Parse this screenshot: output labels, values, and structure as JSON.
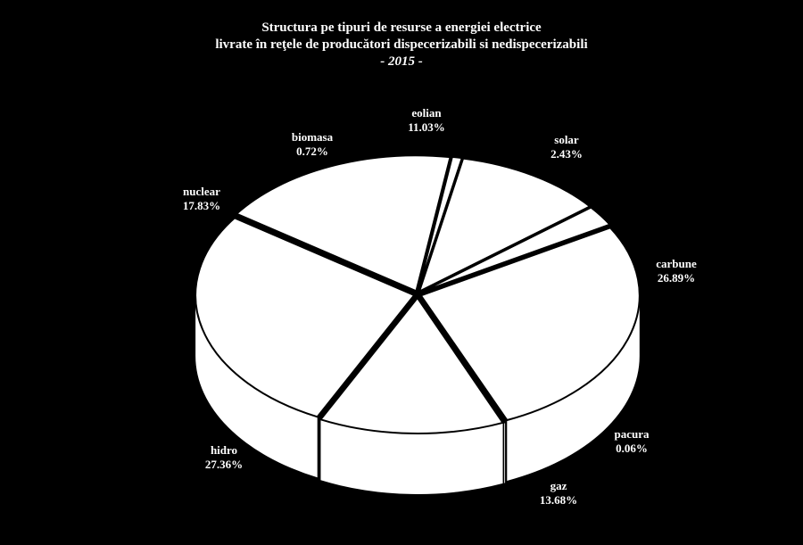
{
  "chart_data": {
    "type": "pie",
    "title": [
      "Structura pe tipuri de resurse a energiei electrice",
      "livrate în reţele de producători dispecerizabili si nedispecerizabili",
      "- 2015 -"
    ],
    "categories": [
      "carbune",
      "pacura",
      "gaz",
      "hidro",
      "nuclear",
      "biomasa",
      "eolian",
      "solar"
    ],
    "values": [
      26.89,
      0.06,
      13.68,
      27.36,
      17.83,
      0.72,
      11.03,
      2.43
    ],
    "value_labels": [
      "26.89%",
      "0.06%",
      "13.68%",
      "27.36%",
      "17.83%",
      "0.72%",
      "11.03%",
      "2.43%"
    ],
    "style": "3d-exploded",
    "slice_color": "#ffffff",
    "background_color": "#000000"
  }
}
